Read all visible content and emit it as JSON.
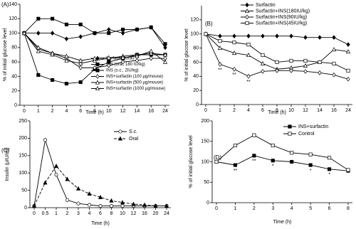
{
  "chart_data": [
    {
      "type": "line",
      "panel_label": "(A)",
      "x_label": "Time (h)",
      "y_label": "% of initial glucose level",
      "categories": [
        "0",
        "1",
        "2",
        "4",
        "6",
        "8",
        "10",
        "12",
        "14",
        "16",
        "24"
      ],
      "ylim": [
        0,
        140
      ],
      "yticks": [
        0,
        20,
        40,
        60,
        80,
        100,
        120,
        140
      ],
      "series": [
        {
          "name": "Surfactin (oral)",
          "color": "#000",
          "marker": "diamond",
          "filled": true,
          "values": [
            100,
            100,
            100,
            92,
            95,
            100,
            105,
            100,
            105,
            108,
            80
          ]
        },
        {
          "name": "INS (oral, 180 IU/kg)",
          "color": "#000",
          "marker": "square",
          "filled": true,
          "values": [
            100,
            120,
            120,
            112,
            112,
            100,
            100,
            105,
            105,
            108,
            85
          ]
        },
        {
          "name": "INS (s.c., 2IU/kg)",
          "color": "#000",
          "marker": "square",
          "filled": true,
          "values": [
            100,
            42,
            35,
            30,
            32,
            50,
            60,
            65,
            70,
            70,
            70
          ]
        },
        {
          "name": "INS+surfactin (100 μg/mouse)",
          "color": "#000",
          "marker": "diamond",
          "filled": false,
          "values": [
            100,
            78,
            72,
            65,
            52,
            52,
            55,
            60,
            62,
            65,
            65
          ]
        },
        {
          "name": "INS+surfactin (500 μg/mouse)",
          "color": "#000",
          "marker": "triangle",
          "filled": false,
          "values": [
            100,
            75,
            70,
            62,
            58,
            62,
            65,
            68,
            70,
            72,
            70
          ]
        },
        {
          "name": "INS+surfactin (1000 μg/mouse)",
          "color": "#000",
          "marker": "triangle",
          "filled": false,
          "values": [
            100,
            80,
            72,
            68,
            62,
            65,
            66,
            66,
            68,
            75,
            60
          ]
        }
      ]
    },
    {
      "type": "line",
      "panel_label": "(B)",
      "x_label": "Time (h)",
      "y_label": "% of initial glucose level",
      "categories": [
        "0",
        "1",
        "2",
        "4",
        "6",
        "8",
        "10",
        "12",
        "14",
        "16",
        "24"
      ],
      "ylim": [
        0,
        140
      ],
      "yticks": [
        0,
        20,
        40,
        60,
        80,
        100,
        120
      ],
      "series": [
        {
          "name": "Surfactin",
          "color": "#000",
          "marker": "diamond",
          "filled": true,
          "values": [
            100,
            97,
            97,
            97,
            97,
            97,
            97,
            95,
            95,
            95,
            85
          ]
        },
        {
          "name": "Surfactin+INS(180IU/kg)",
          "color": "#000",
          "marker": "triangle",
          "filled": false,
          "values": [
            100,
            80,
            73,
            70,
            58,
            50,
            52,
            55,
            60,
            78,
            75
          ]
        },
        {
          "name": "Surfactin+INS(90IU/kg)",
          "color": "#000",
          "marker": "diamond",
          "filled": false,
          "values": [
            100,
            57,
            50,
            40,
            47,
            48,
            48,
            47,
            45,
            42,
            36
          ],
          "marks": [
            null,
            "**",
            "**",
            "**",
            null,
            null,
            null,
            null,
            null,
            null,
            null
          ]
        },
        {
          "name": "Surfactin+INS(45IU/kg)",
          "color": "#000",
          "marker": "square",
          "filled": false,
          "values": [
            100,
            90,
            88,
            85,
            70,
            60,
            62,
            62,
            60,
            58,
            48
          ]
        }
      ]
    },
    {
      "type": "line",
      "panel_label": "(C)",
      "x_label": "Time (h)",
      "y_label": "Insulin (μIU/ml)",
      "categories": [
        "0",
        "0.5",
        "1",
        "2",
        "3",
        "4",
        "6",
        "8",
        "10",
        "12",
        "16",
        "20",
        "24"
      ],
      "ylim": [
        0,
        250
      ],
      "yticks": [
        0,
        50,
        100,
        150,
        200,
        250
      ],
      "series": [
        {
          "name": "S.c.",
          "italic": true,
          "color": "#000",
          "marker": "circle",
          "filled": false,
          "dash": false,
          "values": [
            5,
            195,
            95,
            22,
            12,
            8,
            5,
            5,
            5,
            5,
            5,
            5,
            5
          ]
        },
        {
          "name": "Oral",
          "color": "#000",
          "marker": "triangle",
          "filled": true,
          "dash": true,
          "values": [
            5,
            72,
            120,
            82,
            55,
            40,
            30,
            20,
            15,
            10,
            8,
            5,
            5
          ]
        }
      ]
    },
    {
      "type": "line",
      "panel_label": "(D)",
      "x_label": "Time (h)",
      "y_label": "% of initial glucose level",
      "categories": [
        "0",
        "1",
        "2",
        "3",
        "4",
        "5",
        "6",
        "8"
      ],
      "ylim": [
        0,
        200
      ],
      "yticks": [
        0,
        50,
        100,
        150,
        200
      ],
      "series": [
        {
          "name": "INS+surfactin",
          "color": "#000",
          "marker": "square",
          "filled": true,
          "values": [
            100,
            92,
            115,
            103,
            100,
            92,
            82,
            78
          ],
          "marks": [
            null,
            "**",
            "**",
            "*",
            null,
            "*",
            "*",
            null
          ]
        },
        {
          "name": "Control",
          "color": "#000",
          "marker": "square",
          "filled": false,
          "values": [
            100,
            140,
            165,
            140,
            122,
            118,
            110,
            80
          ]
        }
      ]
    }
  ]
}
